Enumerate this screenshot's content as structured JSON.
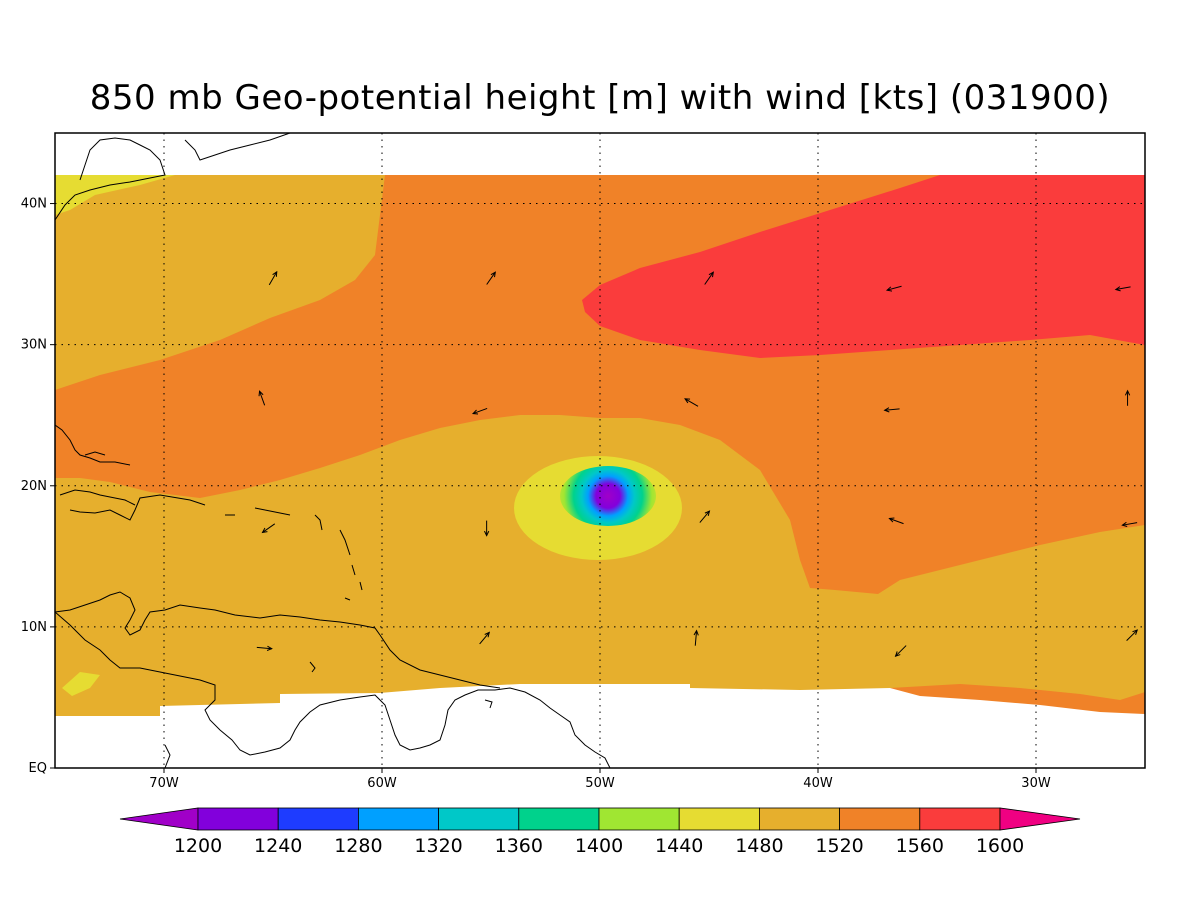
{
  "title": "850 mb Geo-potential height [m] with wind [kts] (031900)",
  "map": {
    "projection": "lat-lon",
    "lon_range": [
      -75,
      -25
    ],
    "lat_range": [
      0,
      45
    ],
    "lon_ticks": [
      {
        "value": -70,
        "label": "70W"
      },
      {
        "value": -60,
        "label": "60W"
      },
      {
        "value": -50,
        "label": "50W"
      },
      {
        "value": -40,
        "label": "40W"
      },
      {
        "value": -30,
        "label": "30W"
      }
    ],
    "lat_ticks": [
      {
        "value": 0,
        "label": "EQ"
      },
      {
        "value": 10,
        "label": "10N"
      },
      {
        "value": 20,
        "label": "20N"
      },
      {
        "value": 30,
        "label": "30N"
      },
      {
        "value": 40,
        "label": "40N"
      }
    ],
    "gridlines": "dotted",
    "cyclone_center": {
      "lon": -50.4,
      "lat": 19.2
    }
  },
  "colorbar": {
    "labels": [
      "1200",
      "1240",
      "1280",
      "1320",
      "1360",
      "1400",
      "1440",
      "1480",
      "1520",
      "1560",
      "1600"
    ],
    "colors": [
      "#a000c8",
      "#8200dc",
      "#1e3cff",
      "#00a0ff",
      "#00c8c8",
      "#00d28c",
      "#a0e632",
      "#e6dc32",
      "#e6af2d",
      "#f08228",
      "#fa3c3c",
      "#f00082"
    ]
  },
  "wind_vectors": [
    {
      "lon": -65,
      "lat": 34.7,
      "dir": 60
    },
    {
      "lon": -55,
      "lat": 34.7,
      "dir": 55
    },
    {
      "lon": -45,
      "lat": 34.7,
      "dir": 55
    },
    {
      "lon": -36.5,
      "lat": 34.0,
      "dir": 195
    },
    {
      "lon": -26,
      "lat": 34.0,
      "dir": 190
    },
    {
      "lon": -65.5,
      "lat": 26.2,
      "dir": 110
    },
    {
      "lon": -55.5,
      "lat": 25.3,
      "dir": 200
    },
    {
      "lon": -45.8,
      "lat": 25.9,
      "dir": 150
    },
    {
      "lon": -36.6,
      "lat": 25.4,
      "dir": 185
    },
    {
      "lon": -25.8,
      "lat": 26.2,
      "dir": 90
    },
    {
      "lon": -65.2,
      "lat": 17.0,
      "dir": 215
    },
    {
      "lon": -55.2,
      "lat": 17.0,
      "dir": 270
    },
    {
      "lon": -45.2,
      "lat": 17.8,
      "dir": 50
    },
    {
      "lon": -36.4,
      "lat": 17.5,
      "dir": 160
    },
    {
      "lon": -25.7,
      "lat": 17.3,
      "dir": 190
    },
    {
      "lon": -65.4,
      "lat": 8.5,
      "dir": 355
    },
    {
      "lon": -55.3,
      "lat": 9.2,
      "dir": 50
    },
    {
      "lon": -45.6,
      "lat": 9.2,
      "dir": 85
    },
    {
      "lon": -36.2,
      "lat": 8.3,
      "dir": 225
    },
    {
      "lon": -25.6,
      "lat": 9.4,
      "dir": 45
    }
  ]
}
